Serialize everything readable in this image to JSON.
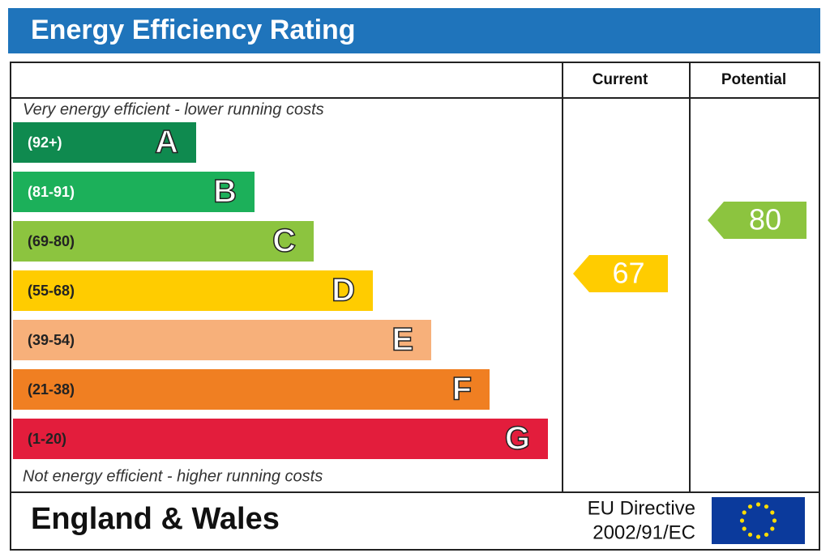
{
  "header": {
    "title": "Energy Efficiency Rating"
  },
  "columns": {
    "current": "Current",
    "potential": "Potential"
  },
  "top_note": "Very energy efficient - lower running costs",
  "bottom_note": "Not energy efficient - higher running costs",
  "bands": [
    {
      "range": "(92+)",
      "letter": "A",
      "color": "#0f8a4f"
    },
    {
      "range": "(81-91)",
      "letter": "B",
      "color": "#1cb05a"
    },
    {
      "range": "(69-80)",
      "letter": "C",
      "color": "#8cc43f"
    },
    {
      "range": "(55-68)",
      "letter": "D",
      "color": "#ffcc00"
    },
    {
      "range": "(39-54)",
      "letter": "E",
      "color": "#f7b07a"
    },
    {
      "range": "(21-38)",
      "letter": "F",
      "color": "#f07f22"
    },
    {
      "range": "(1-20)",
      "letter": "G",
      "color": "#e31d3c"
    }
  ],
  "current": {
    "value": 67,
    "color": "#ffcc00"
  },
  "potential": {
    "value": 80,
    "color": "#8cc43f"
  },
  "footer": {
    "region": "England & Wales",
    "directive_line1": "EU Directive",
    "directive_line2": "2002/91/EC"
  }
}
